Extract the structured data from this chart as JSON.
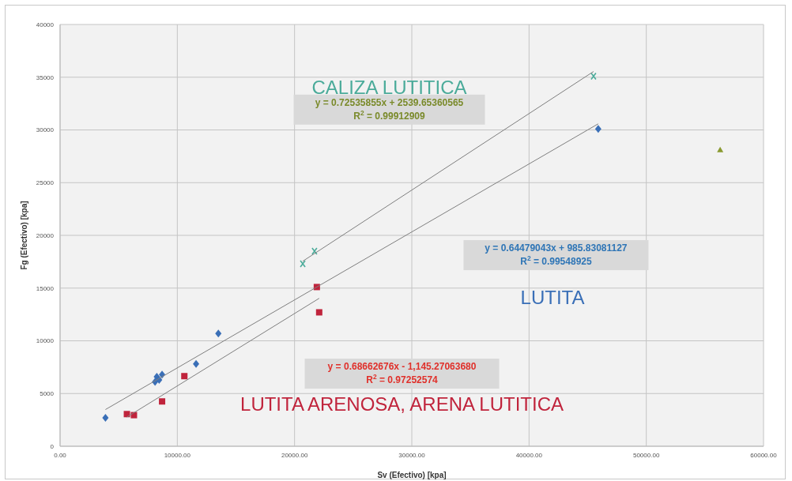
{
  "chart_data": {
    "type": "scatter",
    "xlabel": "Sv (Efectivo) [kpa]",
    "ylabel": "Fg (Efectivo) [kpa]",
    "xlim": [
      0,
      60000
    ],
    "ylim": [
      0,
      40000
    ],
    "xticks": [
      {
        "value": 0,
        "label": "0.00"
      },
      {
        "value": 10000,
        "label": "10000.00"
      },
      {
        "value": 20000,
        "label": "20000.00"
      },
      {
        "value": 30000,
        "label": "30000.00"
      },
      {
        "value": 40000,
        "label": "40000.00"
      },
      {
        "value": 50000,
        "label": "50000.00"
      },
      {
        "value": 60000,
        "label": "60000.00"
      }
    ],
    "yticks": [
      0,
      5000,
      10000,
      15000,
      20000,
      25000,
      30000,
      35000,
      40000
    ],
    "grid": true,
    "legend": false,
    "series": [
      {
        "name": "LUTITA",
        "color": "#3a6fb7",
        "marker": "diamond",
        "x": [
          3870,
          8100,
          8250,
          8450,
          8700,
          11600,
          13500,
          45900
        ],
        "values": [
          2700,
          6100,
          6600,
          6300,
          6800,
          7800,
          10700,
          30100
        ]
      },
      {
        "name": "LUTITA ARENOSA, ARENA LUTITICA",
        "color": "#c0243c",
        "marker": "square",
        "x": [
          5700,
          6300,
          8700,
          10600,
          21900,
          22100
        ],
        "values": [
          3050,
          2950,
          4250,
          6650,
          15100,
          12700
        ]
      },
      {
        "name": "CALIZA LUTITICA",
        "color": "#4bab9a",
        "marker": "cross",
        "x": [
          20700,
          21700,
          45500
        ],
        "values": [
          17300,
          18500,
          35100
        ]
      },
      {
        "color": "#8a9a30",
        "marker": "triangle",
        "x": [
          56300
        ],
        "values": [
          28100
        ]
      },
      {
        "type": "line",
        "color": "#7f7f7f",
        "marker": "none",
        "x": [
          3870,
          45900
        ],
        "values": [
          3480,
          30580
        ]
      },
      {
        "type": "line",
        "color": "#7f7f7f",
        "marker": "none",
        "x": [
          5700,
          22100
        ],
        "values": [
          2770,
          14030
        ]
      },
      {
        "type": "line",
        "color": "#7f7f7f",
        "marker": "none",
        "x": [
          20700,
          45500
        ],
        "values": [
          17550,
          35540
        ]
      }
    ],
    "annotations": [
      "y = 0.72535855x + 2539.65360565",
      "R$^{2}$ = 0.99912909",
      "y = 0.64479043x + 985.83081127",
      "R$^{2}$ = 0.99548925",
      "y = 0.68662676x - 1,145.27063680",
      "R$^{2}$ = 0.97252574"
    ]
  }
}
